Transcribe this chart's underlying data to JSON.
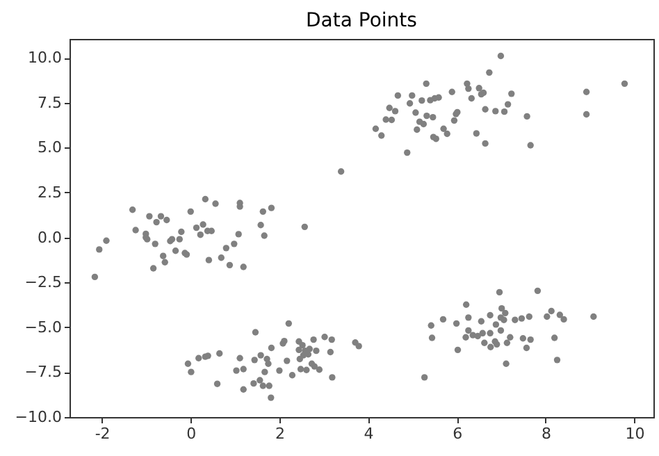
{
  "chart_data": {
    "type": "scatter",
    "title": "Data Points",
    "marker": "circle",
    "grid": false,
    "legend": false,
    "xlim": [
      -2.73,
      10.43
    ],
    "ylim": [
      -10,
      11.05
    ],
    "xticks": [
      -2,
      0,
      2,
      4,
      6,
      8,
      10
    ],
    "yticks": [
      {
        "value": -10,
        "label": "−10.0"
      },
      {
        "value": -7.5,
        "label": "−7.5"
      },
      {
        "value": -5,
        "label": "−5.0"
      },
      {
        "value": -2.5,
        "label": "−2.5"
      },
      {
        "value": 0,
        "label": "0.0"
      },
      {
        "value": 2.5,
        "label": "2.5"
      },
      {
        "value": 5,
        "label": "5.0"
      },
      {
        "value": 7.5,
        "label": "7.5"
      },
      {
        "value": 10,
        "label": "10.0"
      }
    ],
    "series": [
      {
        "color": "#808080",
        "x": [
          -2.16,
          -2.06,
          -1.9,
          -1.31,
          -1.24,
          -1.01,
          -1.01,
          -0.98,
          -0.93,
          -0.84,
          -0.8,
          -0.77,
          -0.67,
          -0.62,
          -0.58,
          -0.54,
          -0.46,
          -0.42,
          -0.34,
          -0.25,
          -0.21,
          -0.13,
          -0.09,
          0.0,
          0.13,
          0.22,
          0.28,
          0.33,
          0.38,
          0.41,
          0.47,
          0.56,
          0.69,
          0.8,
          0.88,
          0.98,
          1.08,
          1.11,
          1.11,
          1.19,
          1.58,
          1.63,
          1.66,
          1.82,
          2.57,
          3.39,
          4.17,
          4.3,
          4.4,
          4.48,
          4.53,
          4.61,
          4.67,
          4.88,
          4.94,
          4.99,
          5.07,
          5.1,
          5.16,
          5.21,
          5.25,
          5.31,
          5.32,
          5.4,
          5.46,
          5.47,
          5.5,
          5.53,
          5.59,
          5.7,
          5.78,
          5.89,
          5.94,
          5.98,
          6.01,
          6.23,
          6.26,
          6.33,
          6.44,
          6.5,
          6.55,
          6.6,
          6.64,
          6.64,
          6.73,
          6.87,
          6.99,
          7.07,
          7.15,
          7.23,
          7.58,
          7.66,
          8.92,
          8.92,
          9.78,
          -0.06,
          0.01,
          0.18,
          0.33,
          0.39,
          0.6,
          0.65,
          1.03,
          1.11,
          1.19,
          1.19,
          1.42,
          1.44,
          1.46,
          1.56,
          1.58,
          1.63,
          1.67,
          1.72,
          1.75,
          1.77,
          1.81,
          1.82,
          2.0,
          2.08,
          2.11,
          2.17,
          2.21,
          2.29,
          2.44,
          2.44,
          2.46,
          2.48,
          2.52,
          2.54,
          2.58,
          2.61,
          2.65,
          2.68,
          2.73,
          2.77,
          2.79,
          2.83,
          2.9,
          3.02,
          3.15,
          3.18,
          3.19,
          3.71,
          3.79,
          5.27,
          5.42,
          5.44,
          5.69,
          5.99,
          6.02,
          6.21,
          6.26,
          6.26,
          6.2,
          6.36,
          6.47,
          6.55,
          6.58,
          6.62,
          6.75,
          6.75,
          6.76,
          6.86,
          6.88,
          6.9,
          6.96,
          6.99,
          6.99,
          7.01,
          7.06,
          7.09,
          7.11,
          7.13,
          7.2,
          7.31,
          7.46,
          7.49,
          7.57,
          7.63,
          7.66,
          7.82,
          8.03,
          8.13,
          8.2,
          8.26,
          8.32,
          8.41,
          9.08
        ],
        "values": [
          -2.2,
          -0.67,
          -0.18,
          1.54,
          0.41,
          0.2,
          0.0,
          -0.1,
          1.18,
          -1.72,
          -0.36,
          0.85,
          1.18,
          -1.03,
          -1.38,
          0.97,
          -0.2,
          -0.1,
          -0.74,
          -0.1,
          0.31,
          -0.87,
          -0.95,
          1.44,
          0.54,
          0.15,
          0.72,
          2.13,
          0.36,
          -1.26,
          0.36,
          1.88,
          -1.13,
          -0.59,
          -1.54,
          -0.36,
          0.18,
          1.92,
          1.72,
          -1.64,
          0.69,
          1.44,
          0.1,
          1.64,
          0.59,
          3.67,
          6.05,
          5.67,
          6.56,
          7.21,
          6.54,
          7.03,
          7.9,
          4.72,
          7.46,
          7.9,
          6.95,
          6.0,
          6.44,
          7.62,
          6.31,
          8.56,
          6.77,
          7.64,
          6.69,
          5.59,
          7.74,
          5.49,
          7.79,
          6.05,
          5.77,
          8.1,
          6.51,
          6.87,
          6.97,
          8.56,
          8.28,
          7.74,
          5.79,
          8.31,
          7.97,
          8.05,
          7.13,
          5.23,
          9.18,
          7.03,
          10.1,
          7.0,
          7.41,
          8.0,
          6.74,
          5.13,
          8.1,
          6.85,
          8.56,
          -7.03,
          -7.49,
          -6.72,
          -6.64,
          -6.59,
          -8.15,
          -6.46,
          -7.41,
          -6.72,
          -7.33,
          -8.46,
          -8.13,
          -6.82,
          -5.28,
          -7.95,
          -6.56,
          -8.26,
          -7.49,
          -6.77,
          -7.03,
          -8.26,
          -8.92,
          -6.15,
          -7.41,
          -5.9,
          -5.77,
          -6.87,
          -4.79,
          -7.67,
          -5.79,
          -6.26,
          -6.77,
          -7.33,
          -6.0,
          -6.56,
          -6.31,
          -7.38,
          -6.51,
          -6.21,
          -7.03,
          -5.69,
          -7.18,
          -6.31,
          -7.36,
          -5.54,
          -6.38,
          -5.69,
          -7.79,
          -5.85,
          -6.05,
          -7.79,
          -4.9,
          -5.59,
          -4.56,
          -4.79,
          -6.26,
          -3.74,
          -4.46,
          -5.18,
          -5.56,
          -5.44,
          -5.49,
          -4.67,
          -5.33,
          -5.87,
          -4.33,
          -5.33,
          -6.1,
          -5.79,
          -4.85,
          -5.95,
          -3.05,
          -4.46,
          -5.18,
          -3.95,
          -4.59,
          -4.21,
          -7.03,
          -5.87,
          -5.56,
          -4.59,
          -4.51,
          -5.62,
          -6.15,
          -4.41,
          -5.69,
          -2.97,
          -4.41,
          -4.1,
          -5.59,
          -6.82,
          -4.31,
          -4.56,
          -4.41
        ]
      }
    ]
  }
}
